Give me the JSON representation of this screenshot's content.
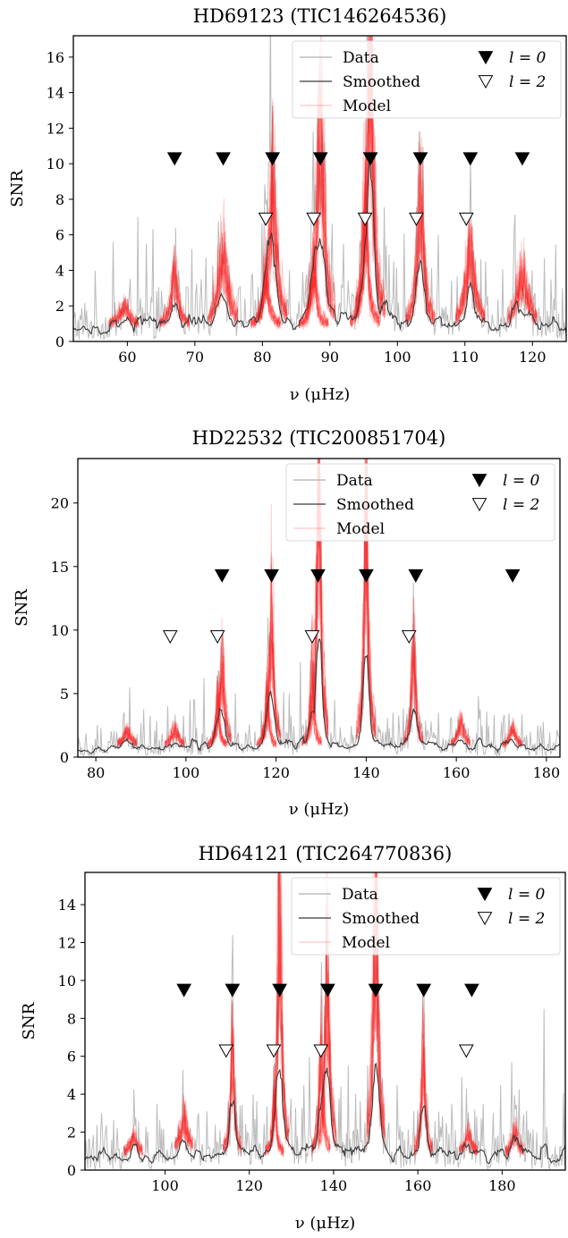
{
  "chart_data": [
    {
      "type": "line",
      "title": "HD69123 (TIC146264536)",
      "xlabel": "ν (μHz)",
      "ylabel": "SNR",
      "xlim": [
        52,
        125
      ],
      "ylim": [
        0,
        17.2
      ],
      "xticks": [
        60,
        70,
        80,
        90,
        100,
        110,
        120
      ],
      "yticks": [
        0,
        2,
        4,
        6,
        8,
        10,
        12,
        14,
        16
      ],
      "legend_position": "top-right",
      "legend": {
        "data": "Data",
        "smoothed": "Smoothed",
        "model": "Model",
        "l0": "l = 0",
        "l2": "l = 2"
      },
      "l0_modes": {
        "x": [
          67.0,
          74.2,
          81.5,
          88.6,
          96.0,
          103.4,
          110.8,
          118.5
        ],
        "y": 10.3
      },
      "l2_modes": {
        "x": [
          80.5,
          87.6,
          95.2,
          102.8,
          110.2
        ],
        "y": 6.9
      },
      "peaks": [
        [
          59.5,
          1.2,
          0.8
        ],
        [
          67.0,
          3.5,
          0.5
        ],
        [
          74.2,
          4.5,
          0.8
        ],
        [
          81.5,
          9.0,
          0.6
        ],
        [
          88.6,
          12.5,
          0.6
        ],
        [
          96.0,
          17.0,
          0.5
        ],
        [
          103.4,
          8.5,
          0.5
        ],
        [
          110.8,
          4.5,
          0.7
        ],
        [
          118.5,
          3.0,
          1.0
        ],
        [
          80.5,
          3.5,
          0.4
        ],
        [
          87.6,
          4.0,
          0.4
        ],
        [
          95.2,
          9.0,
          0.4
        ]
      ],
      "noise_spikes": [
        [
          61.5,
          7.0
        ],
        [
          62.8,
          5.5
        ],
        [
          69.5,
          5.2
        ],
        [
          76.5,
          3.0
        ],
        [
          84.0,
          4.0
        ],
        [
          92.0,
          5.5
        ],
        [
          99.5,
          4.5
        ],
        [
          106.0,
          6.0
        ],
        [
          113.0,
          4.5
        ],
        [
          120.0,
          4.0
        ],
        [
          124.5,
          3.0
        ]
      ]
    },
    {
      "type": "line",
      "title": "HD22532 (TIC200851704)",
      "xlabel": "ν (μHz)",
      "ylabel": "SNR",
      "xlim": [
        76,
        183
      ],
      "ylim": [
        0,
        23.5
      ],
      "xticks": [
        80,
        100,
        120,
        140,
        160,
        180
      ],
      "yticks": [
        0,
        5,
        10,
        15,
        20
      ],
      "legend_position": "top-right",
      "legend": {
        "data": "Data",
        "smoothed": "Smoothed",
        "model": "Model",
        "l0": "l = 0",
        "l2": "l = 2"
      },
      "l0_modes": {
        "x": [
          108.0,
          119.0,
          129.3,
          140.0,
          151.0,
          172.5
        ],
        "y": 14.3
      },
      "l2_modes": {
        "x": [
          96.5,
          107.0,
          128.0,
          149.5
        ],
        "y": 9.5
      },
      "peaks": [
        [
          87.0,
          1.2,
          1.0
        ],
        [
          97.5,
          1.5,
          0.8
        ],
        [
          108.0,
          7.0,
          0.6
        ],
        [
          119.0,
          12.0,
          0.5
        ],
        [
          129.5,
          23.0,
          0.5
        ],
        [
          140.0,
          19.0,
          0.5
        ],
        [
          150.5,
          8.5,
          0.5
        ],
        [
          161.0,
          2.0,
          0.8
        ],
        [
          172.5,
          1.5,
          0.8
        ],
        [
          107.0,
          4.0,
          0.4
        ],
        [
          128.0,
          7.0,
          0.4
        ],
        [
          118.0,
          5.0,
          0.4
        ]
      ],
      "noise_spikes": [
        [
          87.5,
          5.5
        ],
        [
          96.0,
          4.0
        ],
        [
          101.0,
          4.5
        ],
        [
          111.0,
          5.0
        ],
        [
          123.0,
          5.0
        ],
        [
          133.0,
          4.5
        ],
        [
          146.0,
          3.5
        ],
        [
          156.0,
          3.5
        ],
        [
          165.0,
          3.0
        ],
        [
          178.0,
          2.5
        ]
      ]
    },
    {
      "type": "line",
      "title": "HD64121 (TIC264770836)",
      "xlabel": "ν (μHz)",
      "ylabel": "SNR",
      "xlim": [
        81,
        195
      ],
      "ylim": [
        0,
        15.7
      ],
      "xticks": [
        100,
        120,
        140,
        160,
        180
      ],
      "yticks": [
        0,
        2,
        4,
        6,
        8,
        10,
        12,
        14
      ],
      "legend_position": "top-right",
      "legend": {
        "data": "Data",
        "smoothed": "Smoothed",
        "model": "Model",
        "l0": "l = 0",
        "l2": "l = 2"
      },
      "l0_modes": {
        "x": [
          104.5,
          116.0,
          127.2,
          138.6,
          150.0,
          161.4,
          172.8
        ],
        "y": 9.5
      },
      "l2_modes": {
        "x": [
          114.5,
          125.8,
          137.0,
          171.5
        ],
        "y": 6.3
      },
      "peaks": [
        [
          92.5,
          1.0,
          0.8
        ],
        [
          104.5,
          2.0,
          1.0
        ],
        [
          116.0,
          6.0,
          0.5
        ],
        [
          127.2,
          15.7,
          0.5
        ],
        [
          138.5,
          10.0,
          0.6
        ],
        [
          150.0,
          15.0,
          0.6
        ],
        [
          161.3,
          6.0,
          0.5
        ],
        [
          172.0,
          1.2,
          0.8
        ],
        [
          183.0,
          1.2,
          0.8
        ],
        [
          137.0,
          6.0,
          0.5
        ],
        [
          126.0,
          4.0,
          0.4
        ]
      ],
      "noise_spikes": [
        [
          85.0,
          3.0
        ],
        [
          98.0,
          3.5
        ],
        [
          108.0,
          3.0
        ],
        [
          121.0,
          4.0
        ],
        [
          133.0,
          4.5
        ],
        [
          143.5,
          5.5
        ],
        [
          155.0,
          4.5
        ],
        [
          168.0,
          3.5
        ],
        [
          178.0,
          3.0
        ],
        [
          190.0,
          8.5
        ]
      ]
    }
  ]
}
